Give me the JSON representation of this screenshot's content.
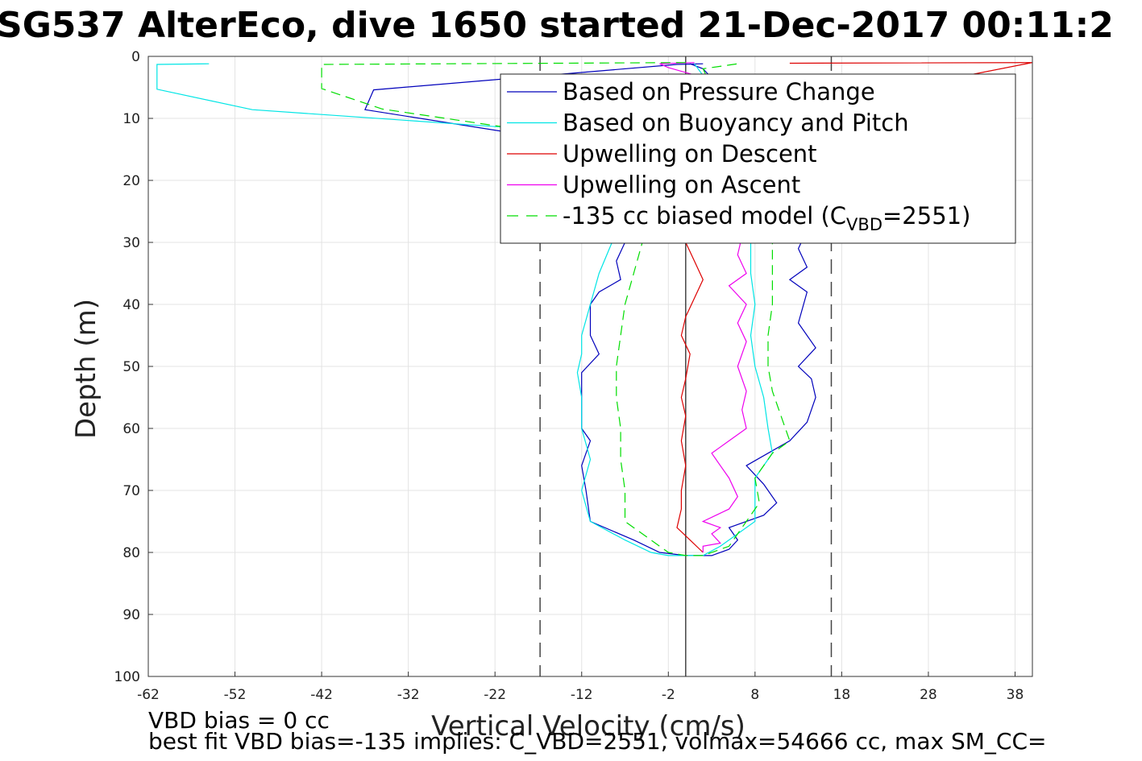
{
  "chart_data": {
    "type": "line",
    "title": "SG537 AlterEco, dive 1650 started 21-Dec-2017 00:11:2",
    "xlabel": "Vertical Velocity (cm/s)",
    "ylabel": "Depth (m)",
    "xlim": [
      -62,
      40
    ],
    "ylim": [
      0,
      100
    ],
    "y_reversed": true,
    "grid": true,
    "xticks": [
      -62,
      -52,
      -42,
      -32,
      -22,
      -12,
      -2,
      8,
      18,
      28,
      38
    ],
    "yticks": [
      0,
      10,
      20,
      30,
      40,
      50,
      60,
      70,
      80,
      90,
      100
    ],
    "legend_position": "top-right",
    "reference_lines": {
      "solid_x": 0,
      "dashed_x": [
        -16.8,
        16.8
      ],
      "color": "#444444"
    },
    "series": [
      {
        "name": "Based on Pressure Change",
        "color": "#0000bb",
        "style": "solid",
        "points": [
          [
            2,
            1.2
          ],
          [
            -1,
            1.3
          ],
          [
            -36,
            5.4
          ],
          [
            -37,
            8.6
          ],
          [
            -8,
            15
          ],
          [
            -6,
            20
          ],
          [
            -6.5,
            25
          ],
          [
            -7,
            30
          ],
          [
            -8,
            33
          ],
          [
            -7.5,
            36
          ],
          [
            -10,
            38
          ],
          [
            -11,
            40
          ],
          [
            -11,
            45
          ],
          [
            -10,
            48
          ],
          [
            -12,
            51
          ],
          [
            -12,
            60
          ],
          [
            -11,
            62
          ],
          [
            -12,
            66
          ],
          [
            -11.5,
            70
          ],
          [
            -11,
            75
          ],
          [
            -6,
            78
          ],
          [
            -3,
            80
          ],
          [
            0,
            80.5
          ],
          [
            3,
            80.5
          ],
          [
            5,
            79.5
          ],
          [
            6,
            78
          ],
          [
            5,
            76
          ],
          [
            9,
            74
          ],
          [
            10.5,
            72
          ],
          [
            9,
            69
          ],
          [
            7,
            66
          ],
          [
            12,
            62
          ],
          [
            14,
            59
          ],
          [
            15,
            55
          ],
          [
            14.5,
            52
          ],
          [
            13,
            50
          ],
          [
            15,
            47
          ],
          [
            13,
            43
          ],
          [
            14,
            38
          ],
          [
            12,
            36
          ],
          [
            14,
            34
          ],
          [
            13,
            31
          ],
          [
            14,
            28
          ],
          [
            13,
            24
          ],
          [
            12,
            20
          ],
          [
            10,
            15
          ],
          [
            8,
            10
          ],
          [
            4,
            5
          ],
          [
            2,
            2
          ],
          [
            0.5,
            1.2
          ]
        ]
      },
      {
        "name": "Based on Buoyancy and Pitch",
        "color": "#00e5e5",
        "style": "solid",
        "points": [
          [
            -55,
            1.2
          ],
          [
            -61,
            1.3
          ],
          [
            -61,
            5.3
          ],
          [
            -50,
            8.6
          ],
          [
            -15,
            12
          ],
          [
            -9,
            15
          ],
          [
            -8,
            20
          ],
          [
            -8.5,
            25
          ],
          [
            -8.5,
            30
          ],
          [
            -10,
            35
          ],
          [
            -11,
            40
          ],
          [
            -12,
            45
          ],
          [
            -12,
            48
          ],
          [
            -12.5,
            51
          ],
          [
            -12,
            55
          ],
          [
            -12,
            60
          ],
          [
            -11,
            65
          ],
          [
            -12,
            70
          ],
          [
            -11,
            75
          ],
          [
            -7,
            78
          ],
          [
            -4,
            80
          ],
          [
            -2,
            80.5
          ],
          [
            2,
            80.5
          ],
          [
            4,
            79
          ],
          [
            6,
            77
          ],
          [
            8,
            75
          ],
          [
            8,
            72
          ],
          [
            8,
            68
          ],
          [
            10,
            64
          ],
          [
            9.5,
            60
          ],
          [
            9,
            55
          ],
          [
            8,
            50
          ],
          [
            7.5,
            45
          ],
          [
            8,
            40
          ],
          [
            7.5,
            35
          ],
          [
            7.5,
            30
          ],
          [
            7,
            25
          ],
          [
            6,
            20
          ],
          [
            5,
            15
          ],
          [
            4,
            10
          ],
          [
            3,
            5
          ],
          [
            1,
            1.2
          ]
        ]
      },
      {
        "name": "Upwelling on Descent",
        "color": "#dd0000",
        "style": "solid",
        "points": [
          [
            12,
            1.1
          ],
          [
            40,
            1.0
          ],
          [
            0,
            12
          ],
          [
            -0.5,
            20
          ],
          [
            0,
            25
          ],
          [
            0,
            30
          ],
          [
            1,
            33
          ],
          [
            2,
            36
          ],
          [
            1,
            39
          ],
          [
            0,
            42
          ],
          [
            -0.5,
            45
          ],
          [
            0.5,
            48
          ],
          [
            0,
            52
          ],
          [
            -0.5,
            55
          ],
          [
            0,
            58
          ],
          [
            -0.5,
            62
          ],
          [
            0,
            66
          ],
          [
            -0.5,
            70
          ],
          [
            -0.5,
            73
          ],
          [
            -1,
            76
          ],
          [
            0.5,
            78
          ],
          [
            2,
            80
          ]
        ]
      },
      {
        "name": "Upwelling on Ascent",
        "color": "#ee00ee",
        "style": "solid",
        "points": [
          [
            2,
            80
          ],
          [
            2,
            79
          ],
          [
            4,
            78.5
          ],
          [
            3,
            77
          ],
          [
            4,
            76
          ],
          [
            2,
            75
          ],
          [
            5,
            73
          ],
          [
            6,
            71
          ],
          [
            5,
            68
          ],
          [
            4,
            66
          ],
          [
            3,
            64
          ],
          [
            5,
            62
          ],
          [
            7,
            60
          ],
          [
            6.5,
            57
          ],
          [
            7,
            54
          ],
          [
            6,
            50
          ],
          [
            7,
            46
          ],
          [
            6,
            43
          ],
          [
            7,
            40
          ],
          [
            5,
            37
          ],
          [
            7,
            35
          ],
          [
            6,
            32
          ],
          [
            6.5,
            29
          ],
          [
            6,
            26
          ],
          [
            5,
            22
          ],
          [
            4,
            18
          ],
          [
            3,
            12
          ],
          [
            2.5,
            6
          ],
          [
            1,
            3
          ],
          [
            -2,
            1.8
          ],
          [
            -3,
            1.2
          ],
          [
            1,
            1.0
          ]
        ]
      },
      {
        "name": "-135 cc biased model (C",
        "name_sub": "VBD",
        "name_suffix": "=2551)",
        "color": "#00dd00",
        "style": "dashed",
        "points": [
          [
            0,
            1.0
          ],
          [
            -42,
            1.3
          ],
          [
            -42,
            5.2
          ],
          [
            -35,
            8.5
          ],
          [
            -18,
            12
          ],
          [
            -6,
            18
          ],
          [
            -5,
            25
          ],
          [
            -5,
            30
          ],
          [
            -6,
            35
          ],
          [
            -7,
            40
          ],
          [
            -7.5,
            45
          ],
          [
            -8,
            50
          ],
          [
            -8,
            55
          ],
          [
            -7.5,
            60
          ],
          [
            -7.5,
            65
          ],
          [
            -7,
            70
          ],
          [
            -7,
            75
          ],
          [
            -4,
            78
          ],
          [
            -2,
            80
          ],
          [
            0,
            80.5
          ],
          [
            2,
            80.5
          ],
          [
            5,
            79
          ],
          [
            6,
            77
          ],
          [
            7,
            75
          ],
          [
            8.5,
            72
          ],
          [
            8,
            68
          ],
          [
            10,
            64
          ],
          [
            12,
            62
          ],
          [
            11,
            58
          ],
          [
            10,
            54
          ],
          [
            9.5,
            50
          ],
          [
            9.5,
            45
          ],
          [
            10,
            40
          ],
          [
            10,
            35
          ],
          [
            10,
            30
          ],
          [
            9,
            25
          ],
          [
            7,
            20
          ],
          [
            5,
            15
          ],
          [
            4,
            10
          ],
          [
            3,
            5
          ],
          [
            2,
            2
          ],
          [
            6,
            1.2
          ]
        ]
      }
    ],
    "footer_lines": [
      "VBD bias = 0 cc",
      "best fit VBD bias=-135 implies: C_VBD=2551, volmax=54666 cc, max SM_CC="
    ]
  }
}
